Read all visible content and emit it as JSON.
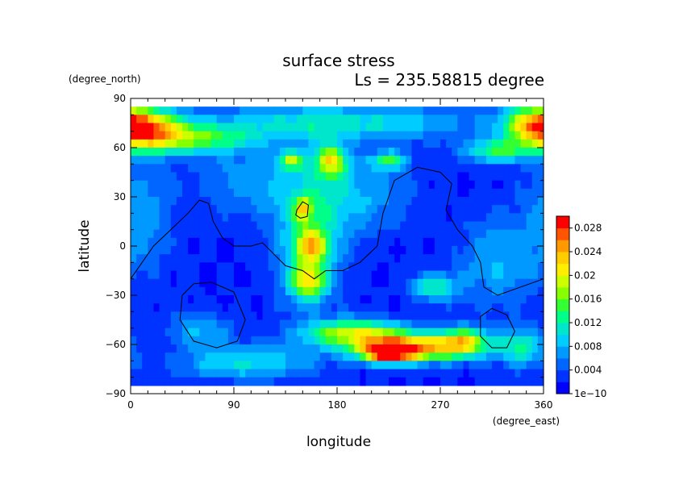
{
  "chart_data": {
    "type": "heatmap",
    "title": "surface stress",
    "subtitle": "Ls = 235.58815 degree",
    "xlabel": "longitude",
    "ylabel": "latitude",
    "x_unit": "(degree_east)",
    "y_unit": "(degree_north)",
    "xlim": [
      0,
      360
    ],
    "ylim": [
      -90,
      90
    ],
    "x_ticks": [
      0,
      90,
      180,
      270,
      360
    ],
    "y_ticks": [
      90,
      60,
      30,
      0,
      -30,
      -60,
      -90
    ],
    "x_tick_labels": [
      "0",
      "90",
      "180",
      "270",
      "360"
    ],
    "y_tick_labels": [
      "90",
      "60",
      "30",
      "0",
      "−30",
      "−60",
      "−90"
    ],
    "colorbar": {
      "min": 1e-10,
      "max": 0.03,
      "tick_values": [
        1e-10,
        0.004,
        0.008,
        0.012,
        0.016,
        0.02,
        0.024,
        0.028
      ],
      "tick_labels": [
        "1e−10",
        "0.004",
        "0.008",
        "0.012",
        "0.016",
        "0.02",
        "0.024",
        "0.028"
      ],
      "colors": [
        "#0000ff",
        "#0033ff",
        "#0066ff",
        "#0099ff",
        "#00ccff",
        "#00e6cc",
        "#00ff88",
        "#33ff33",
        "#88ff00",
        "#ccff00",
        "#ffee00",
        "#ffcc00",
        "#ff9900",
        "#ff5500",
        "#ff0000"
      ]
    },
    "grid": false,
    "values_note": "",
    "hotspots": [
      {
        "lon": 15,
        "lat": 70,
        "amp": 0.016,
        "slon": 25,
        "slat": 9
      },
      {
        "lon": 60,
        "lat": 65,
        "amp": 0.01,
        "slon": 35,
        "slat": 6
      },
      {
        "lon": 355,
        "lat": 75,
        "amp": 0.016,
        "slon": 20,
        "slat": 8
      },
      {
        "lon": 320,
        "lat": 58,
        "amp": 0.012,
        "slon": 20,
        "slat": 5
      },
      {
        "lon": 180,
        "lat": 75,
        "amp": 0.009,
        "slon": 90,
        "slat": 8
      },
      {
        "lon": 175,
        "lat": 52,
        "amp": 0.016,
        "slon": 10,
        "slat": 7
      },
      {
        "lon": 140,
        "lat": 52,
        "amp": 0.012,
        "slon": 8,
        "slat": 4
      },
      {
        "lon": 225,
        "lat": 52,
        "amp": 0.011,
        "slon": 12,
        "slat": 4
      },
      {
        "lon": 150,
        "lat": 22,
        "amp": 0.013,
        "slon": 5,
        "slat": 5
      },
      {
        "lon": 158,
        "lat": 0,
        "amp": 0.015,
        "slon": 10,
        "slat": 7
      },
      {
        "lon": 155,
        "lat": -22,
        "amp": 0.015,
        "slon": 11,
        "slat": 8
      },
      {
        "lon": 155,
        "lat": 10,
        "amp": 0.009,
        "slon": 22,
        "slat": 30
      },
      {
        "lon": 200,
        "lat": 30,
        "amp": 0.006,
        "slon": 30,
        "slat": 15
      },
      {
        "lon": 265,
        "lat": -25,
        "amp": 0.01,
        "slon": 15,
        "slat": 6
      },
      {
        "lon": 195,
        "lat": -53,
        "amp": 0.016,
        "slon": 30,
        "slat": 6
      },
      {
        "lon": 245,
        "lat": -62,
        "amp": 0.022,
        "slon": 35,
        "slat": 6
      },
      {
        "lon": 225,
        "lat": -65,
        "amp": 0.02,
        "slon": 15,
        "slat": 4
      },
      {
        "lon": 290,
        "lat": -58,
        "amp": 0.014,
        "slon": 15,
        "slat": 6
      },
      {
        "lon": 340,
        "lat": -62,
        "amp": 0.01,
        "slon": 15,
        "slat": 8
      },
      {
        "lon": 60,
        "lat": -52,
        "amp": 0.006,
        "slon": 20,
        "slat": 8
      },
      {
        "lon": 120,
        "lat": -70,
        "amp": 0.005,
        "slon": 35,
        "slat": 8
      },
      {
        "lon": 80,
        "lat": -72,
        "amp": 0.005,
        "slon": 35,
        "slat": 6
      },
      {
        "lon": 320,
        "lat": -10,
        "amp": 0.006,
        "slon": 25,
        "slat": 20
      },
      {
        "lon": 10,
        "lat": 20,
        "amp": 0.005,
        "slon": 20,
        "slat": 25
      },
      {
        "lon": 100,
        "lat": 40,
        "amp": 0.005,
        "slon": 30,
        "slat": 15
      }
    ],
    "contours": [
      {
        "name": "continent-outline",
        "closed": false,
        "points": [
          [
            0,
            -20
          ],
          [
            10,
            -10
          ],
          [
            20,
            0
          ],
          [
            35,
            10
          ],
          [
            50,
            20
          ],
          [
            60,
            28
          ],
          [
            68,
            26
          ],
          [
            72,
            15
          ],
          [
            80,
            5
          ],
          [
            90,
            0
          ],
          [
            105,
            0
          ],
          [
            115,
            2
          ],
          [
            125,
            -5
          ],
          [
            135,
            -12
          ],
          [
            150,
            -15
          ],
          [
            160,
            -20
          ],
          [
            170,
            -15
          ],
          [
            185,
            -15
          ],
          [
            200,
            -10
          ],
          [
            215,
            0
          ],
          [
            220,
            20
          ],
          [
            230,
            40
          ],
          [
            250,
            48
          ],
          [
            270,
            45
          ],
          [
            280,
            38
          ],
          [
            275,
            22
          ],
          [
            285,
            10
          ],
          [
            298,
            0
          ],
          [
            305,
            -10
          ],
          [
            308,
            -25
          ],
          [
            320,
            -30
          ],
          [
            340,
            -25
          ],
          [
            360,
            -20
          ]
        ]
      },
      {
        "name": "island-outline",
        "closed": true,
        "points": [
          [
            145,
            22
          ],
          [
            150,
            27
          ],
          [
            155,
            25
          ],
          [
            154,
            18
          ],
          [
            148,
            17
          ],
          [
            144,
            19
          ]
        ]
      },
      {
        "name": "southwest-basin-outline",
        "closed": true,
        "points": [
          [
            70,
            -22
          ],
          [
            90,
            -28
          ],
          [
            100,
            -45
          ],
          [
            93,
            -58
          ],
          [
            75,
            -62
          ],
          [
            55,
            -58
          ],
          [
            43,
            -45
          ],
          [
            45,
            -30
          ],
          [
            55,
            -23
          ]
        ]
      },
      {
        "name": "southeast-basin-outline",
        "closed": true,
        "points": [
          [
            315,
            -38
          ],
          [
            328,
            -42
          ],
          [
            335,
            -52
          ],
          [
            328,
            -62
          ],
          [
            315,
            -62
          ],
          [
            305,
            -55
          ],
          [
            305,
            -43
          ]
        ]
      }
    ]
  }
}
